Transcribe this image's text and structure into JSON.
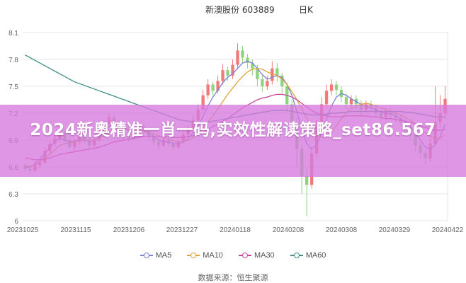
{
  "chart_data": {
    "type": "candlestick",
    "title_name": "新澳股份 603889",
    "title_period": "日K",
    "ylim": [
      6.0,
      8.1
    ],
    "y_ticks": [
      "8.1",
      "7.8",
      "7.5",
      "7.2",
      "6.9",
      "6.6",
      "6.3",
      "6"
    ],
    "x_ticks": [
      "20231025",
      "20231115",
      "20231206",
      "20231227",
      "20240118",
      "20240208",
      "20240308",
      "20240329",
      "20240422"
    ],
    "grid": true,
    "legend_position": "bottom",
    "series": [
      {
        "name": "MA5",
        "color": "#7b83d4"
      },
      {
        "name": "MA10",
        "color": "#e0a33c"
      },
      {
        "name": "MA30",
        "color": "#c9449a"
      },
      {
        "name": "MA60",
        "color": "#3f8f87"
      }
    ],
    "up_color": "#f07a7a",
    "down_color": "#8fd27f",
    "candles": [
      [
        6.62,
        6.58,
        6.64,
        6.55
      ],
      [
        6.58,
        6.56,
        6.62,
        6.52
      ],
      [
        6.56,
        6.62,
        6.66,
        6.54
      ],
      [
        6.62,
        6.65,
        6.7,
        6.58
      ],
      [
        6.65,
        6.78,
        6.82,
        6.63
      ],
      [
        6.78,
        6.86,
        6.9,
        6.74
      ],
      [
        6.86,
        6.92,
        6.96,
        6.82
      ],
      [
        6.92,
        6.98,
        7.02,
        6.88
      ],
      [
        6.98,
        6.9,
        7.0,
        6.86
      ],
      [
        6.9,
        6.82,
        6.93,
        6.8
      ],
      [
        6.82,
        6.88,
        6.92,
        6.78
      ],
      [
        6.88,
        6.95,
        7.0,
        6.85
      ],
      [
        6.95,
        6.9,
        6.98,
        6.86
      ],
      [
        6.9,
        6.84,
        6.92,
        6.8
      ],
      [
        6.84,
        6.9,
        6.95,
        6.82
      ],
      [
        6.9,
        6.96,
        7.02,
        6.88
      ],
      [
        6.96,
        7.08,
        7.12,
        6.94
      ],
      [
        7.08,
        7.15,
        7.2,
        7.04
      ],
      [
        7.15,
        7.1,
        7.18,
        7.06
      ],
      [
        7.1,
        7.02,
        7.12,
        6.98
      ],
      [
        7.02,
        6.96,
        7.05,
        6.92
      ],
      [
        6.96,
        6.92,
        7.0,
        6.88
      ],
      [
        6.92,
        6.98,
        7.02,
        6.9
      ],
      [
        6.98,
        7.05,
        7.1,
        6.95
      ],
      [
        7.05,
        7.0,
        7.08,
        6.96
      ],
      [
        7.0,
        6.94,
        7.03,
        6.9
      ],
      [
        6.94,
        6.88,
        6.96,
        6.84
      ],
      [
        6.88,
        6.84,
        6.92,
        6.8
      ],
      [
        6.84,
        6.9,
        6.94,
        6.82
      ],
      [
        6.9,
        6.86,
        6.93,
        6.82
      ],
      [
        6.86,
        6.82,
        6.89,
        6.79
      ],
      [
        6.82,
        6.88,
        6.92,
        6.8
      ],
      [
        6.88,
        6.96,
        7.0,
        6.86
      ],
      [
        6.96,
        7.02,
        7.06,
        6.93
      ],
      [
        7.02,
        7.12,
        7.18,
        7.0
      ],
      [
        7.12,
        7.24,
        7.3,
        7.1
      ],
      [
        7.24,
        7.4,
        7.46,
        7.2
      ],
      [
        7.4,
        7.52,
        7.58,
        7.36
      ],
      [
        7.52,
        7.45,
        7.55,
        7.4
      ],
      [
        7.45,
        7.56,
        7.62,
        7.42
      ],
      [
        7.56,
        7.68,
        7.75,
        7.52
      ],
      [
        7.68,
        7.62,
        7.72,
        7.56
      ],
      [
        7.62,
        7.74,
        7.8,
        7.58
      ],
      [
        7.74,
        7.9,
        7.98,
        7.7
      ],
      [
        7.9,
        7.82,
        7.95,
        7.76
      ],
      [
        7.82,
        7.76,
        7.86,
        7.7
      ],
      [
        7.76,
        7.7,
        7.8,
        7.62
      ],
      [
        7.7,
        7.58,
        7.74,
        7.5
      ],
      [
        7.58,
        7.5,
        7.62,
        7.44
      ],
      [
        7.5,
        7.56,
        7.62,
        7.46
      ],
      [
        7.56,
        7.7,
        7.78,
        7.52
      ],
      [
        7.7,
        7.62,
        7.76,
        7.55
      ],
      [
        7.62,
        7.5,
        7.65,
        7.42
      ],
      [
        7.5,
        7.3,
        7.54,
        7.2
      ],
      [
        7.3,
        7.1,
        7.34,
        7.0
      ],
      [
        7.1,
        6.8,
        7.14,
        6.6
      ],
      [
        6.8,
        6.5,
        6.86,
        6.3
      ],
      [
        6.5,
        6.4,
        6.58,
        6.05
      ],
      [
        6.4,
        6.75,
        6.82,
        6.36
      ],
      [
        6.75,
        7.05,
        7.12,
        6.7
      ],
      [
        7.05,
        7.3,
        7.38,
        7.0
      ],
      [
        7.3,
        7.45,
        7.52,
        7.26
      ],
      [
        7.45,
        7.52,
        7.58,
        7.4
      ],
      [
        7.52,
        7.46,
        7.56,
        7.4
      ],
      [
        7.46,
        7.38,
        7.5,
        7.32
      ],
      [
        7.38,
        7.3,
        7.42,
        7.24
      ],
      [
        7.3,
        7.36,
        7.4,
        7.26
      ],
      [
        7.36,
        7.3,
        7.4,
        7.24
      ],
      [
        7.3,
        7.24,
        7.34,
        7.18
      ],
      [
        7.24,
        7.3,
        7.34,
        7.2
      ],
      [
        7.3,
        7.26,
        7.34,
        7.22
      ],
      [
        7.26,
        7.2,
        7.3,
        7.16
      ],
      [
        7.2,
        7.16,
        7.24,
        7.12
      ],
      [
        7.16,
        7.22,
        7.26,
        7.12
      ],
      [
        7.22,
        7.18,
        7.26,
        7.14
      ],
      [
        7.18,
        7.14,
        7.22,
        7.1
      ],
      [
        7.14,
        7.1,
        7.18,
        7.06
      ],
      [
        7.1,
        7.04,
        7.14,
        7.0
      ],
      [
        7.04,
        6.96,
        7.08,
        6.9
      ],
      [
        6.96,
        6.84,
        7.0,
        6.78
      ],
      [
        6.84,
        6.76,
        6.88,
        6.7
      ],
      [
        6.76,
        6.7,
        6.8,
        6.64
      ],
      [
        6.7,
        6.86,
        6.92,
        6.66
      ],
      [
        6.86,
        7.1,
        7.5,
        6.82
      ],
      [
        7.1,
        7.2,
        7.4,
        7.04
      ],
      [
        7.2,
        7.36,
        7.5,
        7.14
      ]
    ],
    "ma": {
      "MA5": [
        6.59,
        6.6,
        6.63,
        6.69,
        6.75,
        6.82,
        6.88,
        6.92,
        6.9,
        6.88,
        6.89,
        6.91,
        6.9,
        6.88,
        6.89,
        6.93,
        6.99,
        7.05,
        7.08,
        7.07,
        7.04,
        7.0,
        6.99,
        7.0,
        7.0,
        6.98,
        6.94,
        6.9,
        6.88,
        6.88,
        6.86,
        6.86,
        6.88,
        6.92,
        6.98,
        7.06,
        7.16,
        7.28,
        7.38,
        7.46,
        7.54,
        7.6,
        7.64,
        7.7,
        7.76,
        7.78,
        7.76,
        7.7,
        7.63,
        7.58,
        7.6,
        7.62,
        7.6,
        7.52,
        7.4,
        7.22,
        7.02,
        6.86,
        6.8,
        6.85,
        6.98,
        7.14,
        7.28,
        7.38,
        7.42,
        7.4,
        7.36,
        7.33,
        7.3,
        7.28,
        7.26,
        7.24,
        7.21,
        7.2,
        7.19,
        7.17,
        7.14,
        7.1,
        7.05,
        6.98,
        6.9,
        6.82,
        6.8,
        6.85,
        6.94,
        7.08
      ],
      "MA10": [
        6.6,
        6.61,
        6.62,
        6.66,
        6.7,
        6.74,
        6.79,
        6.84,
        6.86,
        6.87,
        6.88,
        6.89,
        6.9,
        6.9,
        6.9,
        6.92,
        6.95,
        6.99,
        7.02,
        7.03,
        7.03,
        7.02,
        7.01,
        7.01,
        7.0,
        6.99,
        6.97,
        6.95,
        6.93,
        6.91,
        6.89,
        6.88,
        6.88,
        6.9,
        6.93,
        6.97,
        7.03,
        7.1,
        7.17,
        7.25,
        7.33,
        7.41,
        7.48,
        7.55,
        7.61,
        7.66,
        7.69,
        7.7,
        7.69,
        7.66,
        7.64,
        7.62,
        7.58,
        7.52,
        7.44,
        7.35,
        7.25,
        7.14,
        7.04,
        6.96,
        6.93,
        6.94,
        6.99,
        7.06,
        7.14,
        7.21,
        7.25,
        7.28,
        7.3,
        7.31,
        7.3,
        7.28,
        7.26,
        7.24,
        7.22,
        7.2,
        7.18,
        7.15,
        7.12,
        7.08,
        7.03,
        6.98,
        6.94,
        6.92,
        6.92,
        6.96
      ],
      "MA30": [
        6.7,
        6.69,
        6.68,
        6.68,
        6.69,
        6.7,
        6.72,
        6.74,
        6.75,
        6.76,
        6.77,
        6.78,
        6.79,
        6.8,
        6.81,
        6.82,
        6.84,
        6.86,
        6.88,
        6.89,
        6.9,
        6.91,
        6.92,
        6.93,
        6.94,
        6.94,
        6.94,
        6.94,
        6.94,
        6.94,
        6.93,
        6.93,
        6.93,
        6.94,
        6.95,
        6.97,
        6.99,
        7.02,
        7.05,
        7.08,
        7.11,
        7.14,
        7.18,
        7.22,
        7.26,
        7.29,
        7.32,
        7.35,
        7.37,
        7.38,
        7.4,
        7.41,
        7.41,
        7.4,
        7.38,
        7.35,
        7.31,
        7.27,
        7.23,
        7.2,
        7.18,
        7.17,
        7.16,
        7.16,
        7.16,
        7.17,
        7.17,
        7.17,
        7.17,
        7.17,
        7.16,
        7.16,
        7.15,
        7.14,
        7.14,
        7.13,
        7.12,
        7.11,
        7.1,
        7.08,
        7.06,
        7.04,
        7.02,
        7.01,
        7.01,
        7.02
      ],
      "MA60": [
        7.85,
        7.82,
        7.79,
        7.76,
        7.73,
        7.7,
        7.67,
        7.64,
        7.61,
        7.58,
        7.55,
        7.53,
        7.51,
        7.49,
        7.47,
        7.45,
        7.43,
        7.41,
        7.39,
        7.37,
        7.35,
        7.33,
        7.31,
        7.29,
        7.27,
        7.25,
        7.23,
        7.21,
        7.19,
        7.17,
        7.15,
        7.13,
        7.12,
        7.11,
        7.1,
        7.1,
        7.1,
        7.1,
        7.11,
        7.12,
        7.13,
        7.14,
        7.15,
        7.16,
        7.17,
        7.18,
        7.19,
        7.2,
        7.21,
        7.22,
        7.23,
        7.23,
        7.23,
        7.23,
        7.22,
        7.21,
        7.2,
        7.19,
        7.18,
        7.18,
        7.18,
        7.19,
        7.2,
        7.2,
        7.21,
        7.21,
        7.22,
        7.22,
        7.22,
        7.22,
        7.22,
        7.22,
        7.22,
        7.22,
        7.22,
        7.22,
        7.22,
        7.21,
        7.21,
        7.2,
        7.19,
        7.18,
        7.17,
        7.16,
        7.16,
        7.16
      ]
    }
  },
  "banner": {
    "text": "2024新奥精准一肖一码,实效性解读策略_set86.567"
  },
  "source": "数据来源：恒生聚源"
}
